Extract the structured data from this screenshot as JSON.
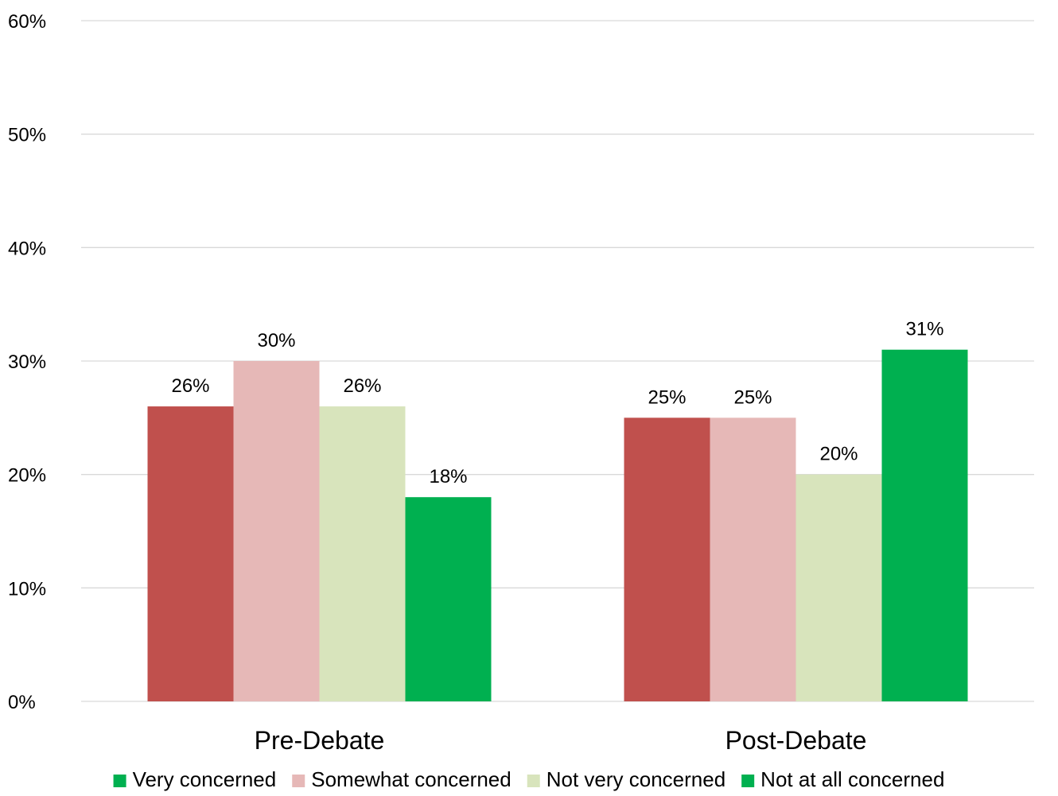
{
  "chart_data": {
    "type": "bar",
    "categories": [
      "Pre-Debate",
      "Post-Debate"
    ],
    "series": [
      {
        "name": "Very concerned",
        "values": [
          26,
          25
        ],
        "labels": [
          "26%",
          "25%"
        ],
        "color": "#C0504D",
        "legend_color": "#00B050"
      },
      {
        "name": "Somewhat concerned",
        "values": [
          30,
          25
        ],
        "labels": [
          "30%",
          "25%"
        ],
        "color": "#E6B8B7",
        "legend_color": "#E6B8B7"
      },
      {
        "name": "Not very concerned",
        "values": [
          26,
          20
        ],
        "labels": [
          "26%",
          "20%"
        ],
        "color": "#D8E4BC",
        "legend_color": "#D8E4BC"
      },
      {
        "name": "Not at all concerned",
        "values": [
          18,
          31
        ],
        "labels": [
          "18%",
          "31%"
        ],
        "color": "#00B050",
        "legend_color": "#00B050"
      }
    ],
    "ylim": [
      0,
      60
    ],
    "yticks": [
      "0%",
      "10%",
      "20%",
      "30%",
      "40%",
      "50%",
      "60%"
    ],
    "grid": true,
    "legend_position": "bottom",
    "gridline_color": "#D9D9D9"
  }
}
